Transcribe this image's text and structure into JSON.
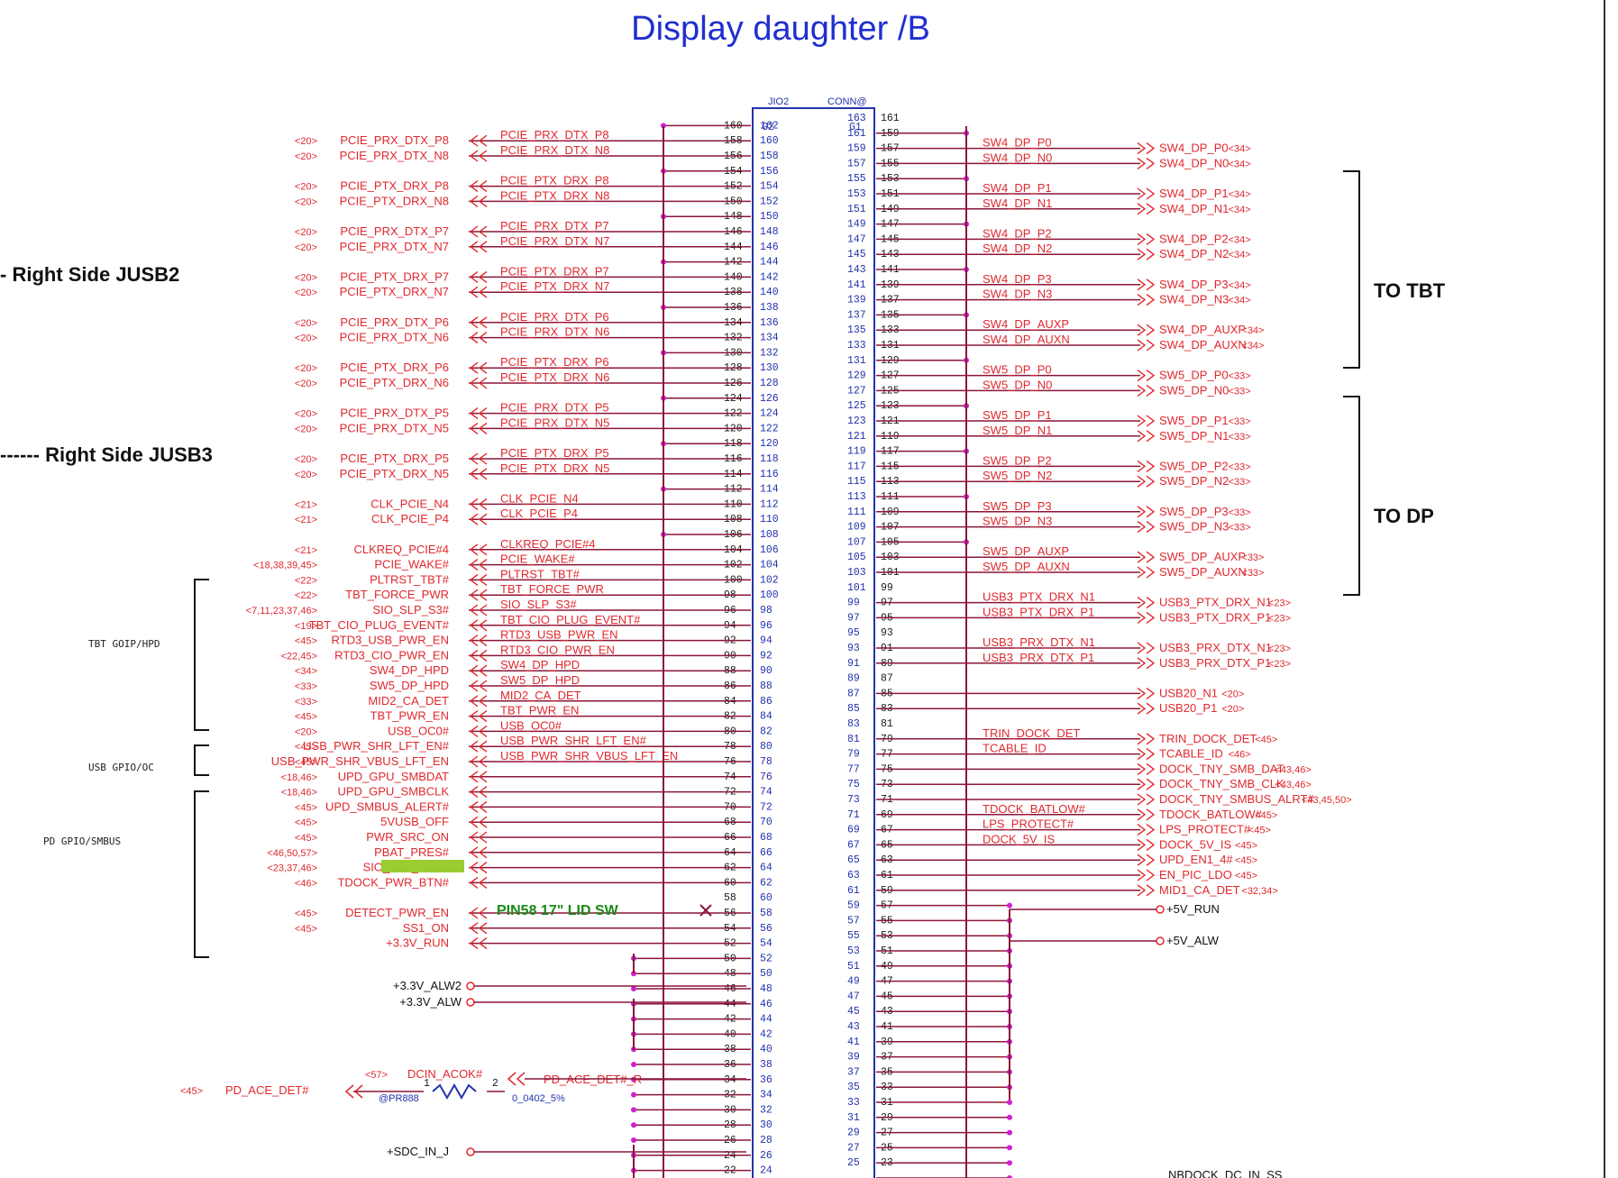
{
  "title": "Display daughter /B",
  "connector": {
    "refdes": "JIO2",
    "value": "CONN@",
    "g_left": "G2",
    "g_right": "G1"
  },
  "notes": {
    "jusb2": "- Right Side JUSB2",
    "jusb3": "------ Right Side JUSB3",
    "to_tbt": "TO TBT",
    "to_dp": "TO DP",
    "lid_sw": "PIN58 17\" LID SW"
  },
  "groups": {
    "tbt": "TBT GOIP/HPD",
    "usb": "USB GPIO/OC",
    "pd": "PD GPIO/SMBUS"
  },
  "left_rows": [
    {
      "pin": 158,
      "ref": "<20>",
      "name": "PCIE_PRX_DTX_P8",
      "inner": "PCIE_PRX_DTX_P8"
    },
    {
      "pin": 156,
      "ref": "<20>",
      "name": "PCIE_PRX_DTX_N8",
      "inner": "PCIE_PRX_DTX_N8"
    },
    {
      "pin": 152,
      "ref": "<20>",
      "name": "PCIE_PTX_DRX_P8",
      "inner": "PCIE_PTX_DRX_P8"
    },
    {
      "pin": 150,
      "ref": "<20>",
      "name": "PCIE_PTX_DRX_N8",
      "inner": "PCIE_PTX_DRX_N8"
    },
    {
      "pin": 146,
      "ref": "<20>",
      "name": "PCIE_PRX_DTX_P7",
      "inner": "PCIE_PRX_DTX_P7"
    },
    {
      "pin": 144,
      "ref": "<20>",
      "name": "PCIE_PRX_DTX_N7",
      "inner": "PCIE_PRX_DTX_N7"
    },
    {
      "pin": 140,
      "ref": "<20>",
      "name": "PCIE_PTX_DRX_P7",
      "inner": "PCIE_PTX_DRX_P7"
    },
    {
      "pin": 138,
      "ref": "<20>",
      "name": "PCIE_PTX_DRX_N7",
      "inner": "PCIE_PTX_DRX_N7"
    },
    {
      "pin": 134,
      "ref": "<20>",
      "name": "PCIE_PRX_DTX_P6",
      "inner": "PCIE_PRX_DTX_P6"
    },
    {
      "pin": 132,
      "ref": "<20>",
      "name": "PCIE_PRX_DTX_N6",
      "inner": "PCIE_PRX_DTX_N6"
    },
    {
      "pin": 128,
      "ref": "<20>",
      "name": "PCIE_PTX_DRX_P6",
      "inner": "PCIE_PTX_DRX_P6"
    },
    {
      "pin": 126,
      "ref": "<20>",
      "name": "PCIE_PTX_DRX_N6",
      "inner": "PCIE_PTX_DRX_N6"
    },
    {
      "pin": 122,
      "ref": "<20>",
      "name": "PCIE_PRX_DTX_P5",
      "inner": "PCIE_PRX_DTX_P5"
    },
    {
      "pin": 120,
      "ref": "<20>",
      "name": "PCIE_PRX_DTX_N5",
      "inner": "PCIE_PRX_DTX_N5"
    },
    {
      "pin": 116,
      "ref": "<20>",
      "name": "PCIE_PTX_DRX_P5",
      "inner": "PCIE_PTX_DRX_P5"
    },
    {
      "pin": 114,
      "ref": "<20>",
      "name": "PCIE_PTX_DRX_N5",
      "inner": "PCIE_PTX_DRX_N5"
    },
    {
      "pin": 110,
      "ref": "<21>",
      "name": "CLK_PCIE_N4",
      "inner": "CLK_PCIE_N4"
    },
    {
      "pin": 108,
      "ref": "<21>",
      "name": "CLK_PCIE_P4",
      "inner": "CLK_PCIE_P4"
    },
    {
      "pin": 104,
      "ref": "<21>",
      "name": "CLKREQ_PCIE#4",
      "inner": "CLKREQ_PCIE#4"
    },
    {
      "pin": 102,
      "ref": "<18,38,39,45>",
      "name": "PCIE_WAKE#",
      "inner": "PCIE_WAKE#"
    },
    {
      "pin": 100,
      "ref": "<22>",
      "name": "PLTRST_TBT#",
      "inner": "PLTRST_TBT#"
    },
    {
      "pin": 98,
      "ref": "<22>",
      "name": "TBT_FORCE_PWR",
      "inner": "TBT_FORCE_PWR"
    },
    {
      "pin": 96,
      "ref": "<7,11,23,37,46>",
      "name": "SIO_SLP_S3#",
      "inner": "SIO_SLP_S3#"
    },
    {
      "pin": 94,
      "ref": "<19>",
      "name": "TBT_CIO_PLUG_EVENT#",
      "inner": "TBT_CIO_PLUG_EVENT#"
    },
    {
      "pin": 92,
      "ref": "<45>",
      "name": "RTD3_USB_PWR_EN",
      "inner": "RTD3_USB_PWR_EN"
    },
    {
      "pin": 90,
      "ref": "<22,45>",
      "name": "RTD3_CIO_PWR_EN",
      "inner": "RTD3_CIO_PWR_EN"
    },
    {
      "pin": 88,
      "ref": "<34>",
      "name": "SW4_DP_HPD",
      "inner": "SW4_DP_HPD"
    },
    {
      "pin": 86,
      "ref": "<33>",
      "name": "SW5_DP_HPD",
      "inner": "SW5_DP_HPD"
    },
    {
      "pin": 84,
      "ref": "<33>",
      "name": "MID2_CA_DET",
      "inner": "MID2_CA_DET"
    },
    {
      "pin": 82,
      "ref": "<45>",
      "name": "TBT_PWR_EN",
      "inner": "TBT_PWR_EN"
    },
    {
      "pin": 80,
      "ref": "<20>",
      "name": "USB_OC0#",
      "inner": "USB_OC0#"
    },
    {
      "pin": 78,
      "ref": "<45>",
      "name": "USB_PWR_SHR_LFT_EN#",
      "inner": "USB_PWR_SHR_LFT_EN#"
    },
    {
      "pin": 76,
      "ref": "<45>",
      "name": "USB_PWR_SHR_VBUS_LFT_EN",
      "inner": "USB_PWR_SHR_VBUS_LFT_EN"
    },
    {
      "pin": 74,
      "ref": "<18,46>",
      "name": "UPD_GPU_SMBDAT",
      "inner": ""
    },
    {
      "pin": 72,
      "ref": "<18,46>",
      "name": "UPD_GPU_SMBCLK",
      "inner": ""
    },
    {
      "pin": 70,
      "ref": "<45>",
      "name": "UPD_SMBUS_ALERT#",
      "inner": ""
    },
    {
      "pin": 68,
      "ref": "<45>",
      "name": "5VUSB_OFF",
      "inner": ""
    },
    {
      "pin": 66,
      "ref": "<45>",
      "name": "PWR_SRC_ON",
      "inner": ""
    },
    {
      "pin": 64,
      "ref": "<46,50,57>",
      "name": "PBAT_PRES#",
      "inner": ""
    },
    {
      "pin": 62,
      "ref": "<23,37,46>",
      "name": "SIO_SLP_SUS#",
      "inner": ""
    },
    {
      "pin": 60,
      "ref": "<46>",
      "name": "TDOCK_PWR_BTN#",
      "inner": ""
    },
    {
      "pin": 56,
      "ref": "<45>",
      "name": "DETECT_PWR_EN",
      "inner": ""
    },
    {
      "pin": 54,
      "ref": "<45>",
      "name": "SS1_ON",
      "inner": ""
    },
    {
      "pin": 52,
      "ref": "",
      "name": "+3.3V_RUN",
      "inner": ""
    }
  ],
  "right_rows": [
    {
      "pin": 157,
      "inner": "SW4_DP_P0",
      "name": "SW4_DP_P0",
      "ref": "<34>"
    },
    {
      "pin": 155,
      "inner": "SW4_DP_N0",
      "name": "SW4_DP_N0",
      "ref": "<34>"
    },
    {
      "pin": 151,
      "inner": "SW4_DP_P1",
      "name": "SW4_DP_P1",
      "ref": "<34>"
    },
    {
      "pin": 149,
      "inner": "SW4_DP_N1",
      "name": "SW4_DP_N1",
      "ref": "<34>"
    },
    {
      "pin": 145,
      "inner": "SW4_DP_P2",
      "name": "SW4_DP_P2",
      "ref": "<34>"
    },
    {
      "pin": 143,
      "inner": "SW4_DP_N2",
      "name": "SW4_DP_N2",
      "ref": "<34>"
    },
    {
      "pin": 139,
      "inner": "SW4_DP_P3",
      "name": "SW4_DP_P3",
      "ref": "<34>"
    },
    {
      "pin": 137,
      "inner": "SW4_DP_N3",
      "name": "SW4_DP_N3",
      "ref": "<34>"
    },
    {
      "pin": 133,
      "inner": "SW4_DP_AUXP",
      "name": "SW4_DP_AUXP",
      "ref": "<34>"
    },
    {
      "pin": 131,
      "inner": "SW4_DP_AUXN",
      "name": "SW4_DP_AUXN",
      "ref": "<34>"
    },
    {
      "pin": 127,
      "inner": "SW5_DP_P0",
      "name": "SW5_DP_P0",
      "ref": "<33>"
    },
    {
      "pin": 125,
      "inner": "SW5_DP_N0",
      "name": "SW5_DP_N0",
      "ref": "<33>"
    },
    {
      "pin": 121,
      "inner": "SW5_DP_P1",
      "name": "SW5_DP_P1",
      "ref": "<33>"
    },
    {
      "pin": 119,
      "inner": "SW5_DP_N1",
      "name": "SW5_DP_N1",
      "ref": "<33>"
    },
    {
      "pin": 115,
      "inner": "SW5_DP_P2",
      "name": "SW5_DP_P2",
      "ref": "<33>"
    },
    {
      "pin": 113,
      "inner": "SW5_DP_N2",
      "name": "SW5_DP_N2",
      "ref": "<33>"
    },
    {
      "pin": 109,
      "inner": "SW5_DP_P3",
      "name": "SW5_DP_P3",
      "ref": "<33>"
    },
    {
      "pin": 107,
      "inner": "SW5_DP_N3",
      "name": "SW5_DP_N3",
      "ref": "<33>"
    },
    {
      "pin": 103,
      "inner": "SW5_DP_AUXP",
      "name": "SW5_DP_AUXP",
      "ref": "<33>"
    },
    {
      "pin": 101,
      "inner": "SW5_DP_AUXN",
      "name": "SW5_DP_AUXN",
      "ref": "<33>"
    },
    {
      "pin": 97,
      "inner": "USB3_PTX_DRX_N1",
      "name": "USB3_PTX_DRX_N1",
      "ref": "<23>"
    },
    {
      "pin": 95,
      "inner": "USB3_PTX_DRX_P1",
      "name": "USB3_PTX_DRX_P1",
      "ref": "<23>"
    },
    {
      "pin": 91,
      "inner": "USB3_PRX_DTX_N1",
      "name": "USB3_PRX_DTX_N1",
      "ref": "<23>"
    },
    {
      "pin": 89,
      "inner": "USB3_PRX_DTX_P1",
      "name": "USB3_PRX_DTX_P1",
      "ref": "<23>"
    },
    {
      "pin": 85,
      "inner": "",
      "name": "USB20_N1",
      "ref": "<20>"
    },
    {
      "pin": 83,
      "inner": "",
      "name": "USB20_P1",
      "ref": "<20>"
    },
    {
      "pin": 79,
      "inner": "TRIN_DOCK_DET",
      "name": "TRIN_DOCK_DET",
      "ref": "<45>"
    },
    {
      "pin": 77,
      "inner": "TCABLE_ID",
      "name": "TCABLE_ID",
      "ref": "<46>"
    },
    {
      "pin": 75,
      "inner": "",
      "name": "DOCK_TNY_SMB_DAT",
      "ref": "<43,46>"
    },
    {
      "pin": 73,
      "inner": "",
      "name": "DOCK_TNY_SMB_CLK",
      "ref": "<43,46>"
    },
    {
      "pin": 71,
      "inner": "",
      "name": "DOCK_TNY_SMBUS_ALRT#",
      "ref": "<43,45,50>"
    },
    {
      "pin": 69,
      "inner": "TDOCK_BATLOW#",
      "name": "TDOCK_BATLOW#",
      "ref": "<45>"
    },
    {
      "pin": 67,
      "inner": "LPS_PROTECT#",
      "name": "LPS_PROTECT#",
      "ref": "<45>"
    },
    {
      "pin": 65,
      "inner": "DOCK_5V_IS",
      "name": "DOCK_5V_IS",
      "ref": "<45>"
    },
    {
      "pin": 63,
      "inner": "",
      "name": "UPD_EN1_4#",
      "ref": "<45>"
    },
    {
      "pin": 61,
      "inner": "",
      "name": "EN_PIC_LDO",
      "ref": "<45>"
    },
    {
      "pin": 59,
      "inner": "",
      "name": "MID1_CA_DET",
      "ref": "<32,34>"
    }
  ],
  "power": {
    "run5": "+5V_RUN",
    "alw5": "+5V_ALW",
    "alw2_33": "+3.3V_ALW2",
    "alw_33": "+3.3V_ALW",
    "sdc": "+SDC_IN_J",
    "nbdock": "NBDOCK_DC_IN_SS"
  },
  "pd_ace": {
    "ref": "<45>",
    "name": "PD_ACE_DET#",
    "dcin_ref": "<57>",
    "dcin": "DCIN_ACOK#",
    "inner": "PD_ACE_DET#_R",
    "res": "@PR888",
    "res_val": "0_0402_5%",
    "p1": "1",
    "p2": "2"
  },
  "colors": {
    "wire": "#8b1538",
    "label": "#e0282e",
    "pin": "#2233aa",
    "title": "#1f2fd0",
    "highlight": "#9acd32"
  }
}
